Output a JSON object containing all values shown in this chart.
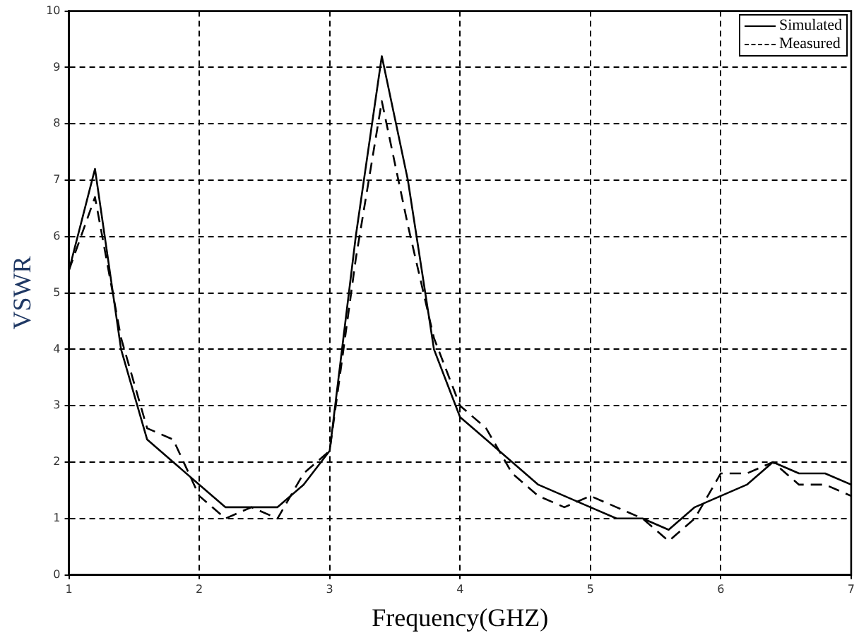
{
  "chart_data": {
    "type": "line",
    "xlabel": "Frequency(GHZ)",
    "ylabel": "VSWR",
    "x": [
      1.0,
      1.2,
      1.4,
      1.6,
      1.8,
      2.0,
      2.2,
      2.4,
      2.6,
      2.8,
      3.0,
      3.2,
      3.4,
      3.6,
      3.8,
      4.0,
      4.2,
      4.4,
      4.6,
      4.8,
      5.0,
      5.2,
      5.4,
      5.6,
      5.8,
      6.0,
      6.2,
      6.4,
      6.6,
      6.8,
      7.0
    ],
    "series": [
      {
        "name": "Simulated",
        "color": "#000000",
        "line_style": "solid",
        "values": [
          5.4,
          7.2,
          4.0,
          2.4,
          2.0,
          1.6,
          1.2,
          1.2,
          1.2,
          1.6,
          2.2,
          6.0,
          9.2,
          7.0,
          4.0,
          2.8,
          2.4,
          2.0,
          1.6,
          1.4,
          1.2,
          1.0,
          1.0,
          0.8,
          1.2,
          1.4,
          1.6,
          2.0,
          1.8,
          1.8,
          1.6
        ]
      },
      {
        "name": "Measured",
        "color": "#000000",
        "line_style": "dashed",
        "values": [
          5.4,
          6.7,
          4.2,
          2.6,
          2.4,
          1.4,
          1.0,
          1.2,
          1.0,
          1.8,
          2.2,
          5.6,
          8.4,
          6.2,
          4.2,
          3.0,
          2.6,
          1.8,
          1.4,
          1.2,
          1.4,
          1.2,
          1.0,
          0.6,
          1.0,
          1.8,
          1.8,
          2.0,
          1.6,
          1.6,
          1.4
        ]
      }
    ],
    "xlim": [
      1,
      7
    ],
    "xticks": [
      1,
      2,
      3,
      4,
      5,
      6,
      7
    ],
    "ylim": [
      0,
      10
    ],
    "yticks": [
      0,
      1,
      2,
      3,
      4,
      5,
      6,
      7,
      8,
      9,
      10
    ],
    "grid": true,
    "legend": "top right",
    "marker": "none"
  }
}
